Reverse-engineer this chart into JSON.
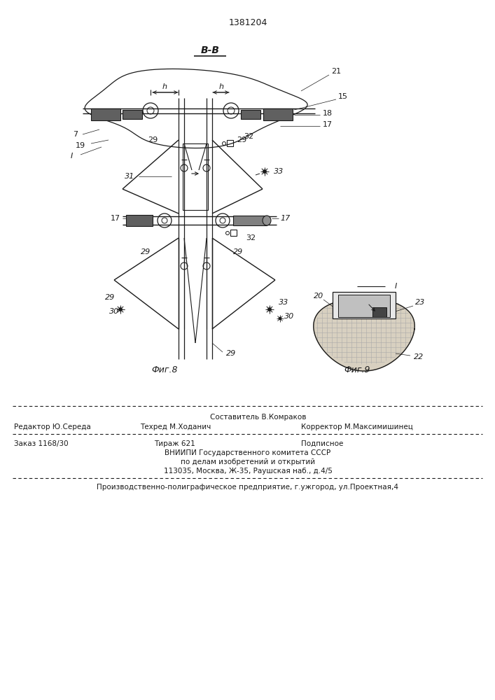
{
  "patent_number": "1381204",
  "fig8_label": "Фиг.8",
  "fig9_label": "Фиг.9",
  "section_label": "В-В",
  "bg_color": "#ffffff",
  "line_color": "#1a1a1a",
  "footer": {
    "line1_left": "Редактор Ю.Середа",
    "line1_center": "Составитель В.Комраков",
    "line1_right": "Корректор М.Максимишинец",
    "line2_left": "Техред М.Ходанич",
    "line3_left": "Заказ 1168/30",
    "line3_center": "Тираж 621",
    "line3_right": "Подписное",
    "line4": "ВНИИПИ Государственного комитета СССР",
    "line5": "по делам изобретений и открытий",
    "line6": "113035, Москва, Ж-35, Раушская наб., д.4/5",
    "line7": "Производственно-полиграфическое предприятие, г.ужгород, ул.Проектная,4"
  }
}
